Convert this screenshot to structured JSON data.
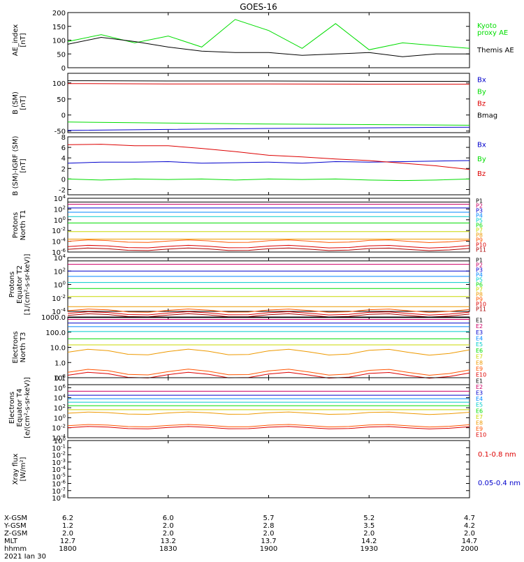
{
  "title": "GOES-16",
  "colors": {
    "black": "#000000",
    "red": "#dd0000",
    "green": "#00dd00",
    "blue": "#0000cc",
    "yellowgreen": "#b5cc00",
    "cyan": "#00cccc",
    "orange": "#ee9900"
  },
  "chart_data": [
    {
      "type": "line",
      "ylabel": "AE_index\n[nT]",
      "ylim": [
        0,
        200
      ],
      "yticks": [
        "0",
        "50",
        "100",
        "150",
        "200"
      ],
      "x": [
        1800,
        1810,
        1820,
        1830,
        1840,
        1850,
        1900,
        1910,
        1920,
        1930,
        1940,
        1950,
        2000
      ],
      "series": [
        {
          "name": "Kyoto proxy AE",
          "color": "#00dd00",
          "legend": [
            "Kyoto",
            "proxy AE"
          ],
          "values": [
            95,
            120,
            90,
            115,
            75,
            175,
            135,
            70,
            160,
            65,
            90,
            80,
            70
          ]
        },
        {
          "name": "Themis AE",
          "color": "#000000",
          "legend": [
            "Themis AE"
          ],
          "values": [
            85,
            110,
            95,
            75,
            60,
            55,
            55,
            45,
            50,
            55,
            40,
            50,
            50
          ]
        }
      ]
    },
    {
      "type": "line",
      "ylabel": "B (SM)\n[nT]",
      "ylim": [
        -55,
        130
      ],
      "yticks": [
        "-50",
        "0",
        "50",
        "100"
      ],
      "x": [
        1800,
        1830,
        1900,
        1930,
        2000
      ],
      "series": [
        {
          "name": "Bx",
          "color": "#0000cc",
          "values": [
            -48,
            -45,
            -42,
            -40,
            -38
          ]
        },
        {
          "name": "By",
          "color": "#00dd00",
          "values": [
            -22,
            -25,
            -28,
            -30,
            -32
          ]
        },
        {
          "name": "Bz",
          "color": "#dd0000",
          "values": [
            98,
            97,
            97,
            96,
            96
          ]
        },
        {
          "name": "Bmag",
          "color": "#000000",
          "values": [
            107,
            106,
            106,
            105,
            105
          ]
        }
      ]
    },
    {
      "type": "line",
      "ylabel": "B (SM)-IGRF (SM)\n[nT]",
      "ylim": [
        -3,
        8
      ],
      "yticks": [
        "-2",
        "0",
        "2",
        "4",
        "6",
        "8"
      ],
      "x": [
        1800,
        1810,
        1820,
        1830,
        1840,
        1850,
        1900,
        1910,
        1920,
        1930,
        1940,
        1950,
        2000
      ],
      "series": [
        {
          "name": "Bx",
          "color": "#0000cc",
          "values": [
            3,
            3.2,
            3.2,
            3.3,
            3,
            3.1,
            3.2,
            3,
            3.3,
            3.2,
            3.3,
            3.4,
            3.5
          ]
        },
        {
          "name": "By",
          "color": "#00dd00",
          "values": [
            0,
            -0.2,
            0,
            -0.1,
            0,
            -0.2,
            0,
            -0.1,
            0,
            -0.2,
            -0.3,
            -0.2,
            0
          ]
        },
        {
          "name": "Bz",
          "color": "#dd0000",
          "values": [
            6.5,
            6.6,
            6.3,
            6.3,
            5.8,
            5.2,
            4.5,
            4.2,
            3.8,
            3.5,
            3.0,
            2.5,
            1.8
          ]
        }
      ]
    },
    {
      "type": "line",
      "ylabel": "Protons\nNorth T1",
      "ylim": [
        "1e-6",
        "1e4"
      ],
      "yticks": [
        "10^4",
        "10^2",
        "10^0",
        "10^-2",
        "10^-4",
        "10^-6"
      ],
      "legend": [
        "P1",
        "P2",
        "P3",
        "P4",
        "P5",
        "P6",
        "P7",
        "P8",
        "P9",
        "P10",
        "P11"
      ],
      "series_log10": [
        3.3,
        2.9,
        2.2,
        1.4,
        0.6,
        -0.6,
        -2.2,
        -3.6,
        -4.0,
        -5.0,
        -5.5
      ]
    },
    {
      "type": "line",
      "ylabel": "Protons\nEquator T2\n[1/(cm²-s-sr-keV)]",
      "ylim": [
        "1e-4",
        "1e4"
      ],
      "yticks": [
        "10^4",
        "10^2",
        "10^0",
        "10^-2",
        "10^-4"
      ],
      "legend": [
        "P1",
        "P2",
        "P3",
        "P4",
        "P5",
        "P6",
        "P7",
        "P8",
        "P9",
        "P10",
        "P11"
      ],
      "series_log10": [
        3.5,
        3.0,
        2.0,
        1.2,
        0.3,
        -0.6,
        -1.8,
        -3.3,
        -3.9,
        -4.3,
        -4.6
      ]
    },
    {
      "type": "line",
      "ylabel": "Electrons\nNorth T3",
      "ylim": [
        "0.1",
        "10000"
      ],
      "yticks": [
        "1000.0",
        "100.0",
        "10.0",
        "1.0",
        "0.1"
      ],
      "legend": [
        "E1",
        "E2",
        "E3",
        "E4",
        "E5",
        "E6",
        "E7",
        "E8",
        "E9",
        "E10"
      ],
      "series_log10": [
        3.95,
        3.8,
        3.5,
        3.2,
        2.8,
        2.2,
        1.7,
        1.1,
        -0.55,
        -0.8
      ]
    },
    {
      "type": "line",
      "ylabel": "Electrons\nEquator T4\n[e/(cm²-s-sr-keV)]",
      "ylim": [
        "1e-4",
        "1e8"
      ],
      "yticks": [
        "10^8",
        "10^6",
        "10^4",
        "10^2",
        "10^0",
        "10^-2",
        "10^-4"
      ],
      "legend": [
        "E1",
        "E2",
        "E3",
        "E4",
        "E5",
        "E6",
        "E7",
        "E8",
        "E9",
        "E10"
      ],
      "series_log10": [
        6.6,
        5.3,
        4.5,
        3.8,
        3.1,
        2.4,
        1.6,
        0.9,
        -1.6,
        -2.0
      ]
    },
    {
      "type": "line",
      "ylabel": "Xray flux\n[W/m²]",
      "ylim": [
        "1e-8",
        "1e0"
      ],
      "yticks": [
        "10^0",
        "10^-1",
        "10^-2",
        "10^-3",
        "10^-4",
        "10^-5",
        "10^-6",
        "10^-7",
        "10^-8"
      ],
      "series": [
        {
          "name": "0.1-0.8 nm",
          "color": "#dd0000"
        },
        {
          "name": "0.05-0.4 nm",
          "color": "#0000cc"
        }
      ]
    }
  ],
  "orbit_table": {
    "rows": [
      {
        "label": "X-GSM",
        "values": [
          "6.2",
          "6.0",
          "5.7",
          "5.2",
          "4.7"
        ]
      },
      {
        "label": "Y-GSM",
        "values": [
          "1.2",
          "2.0",
          "2.8",
          "3.5",
          "4.2"
        ]
      },
      {
        "label": "Z-GSM",
        "values": [
          "2.0",
          "2.0",
          "2.0",
          "2.0",
          "2.0"
        ]
      },
      {
        "label": "MLT",
        "values": [
          "12.7",
          "13.2",
          "13.7",
          "14.2",
          "14.7"
        ]
      },
      {
        "label": "hhmm",
        "values": [
          "1800",
          "1830",
          "1900",
          "1930",
          "2000"
        ]
      }
    ],
    "date": "2021 Jan 30"
  }
}
